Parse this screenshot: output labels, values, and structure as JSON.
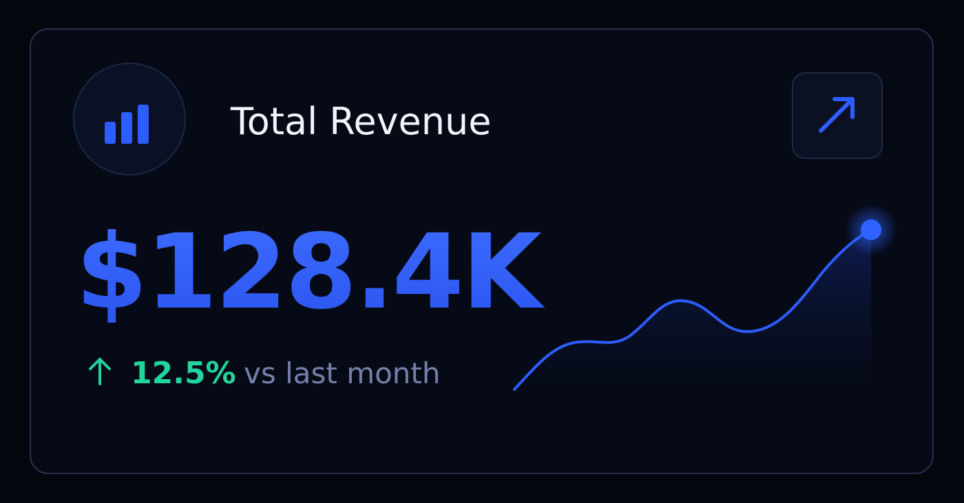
{
  "card": {
    "title": "Total Revenue",
    "value": "$128.4K",
    "change": "12.5%",
    "comparison": "vs last month"
  }
}
